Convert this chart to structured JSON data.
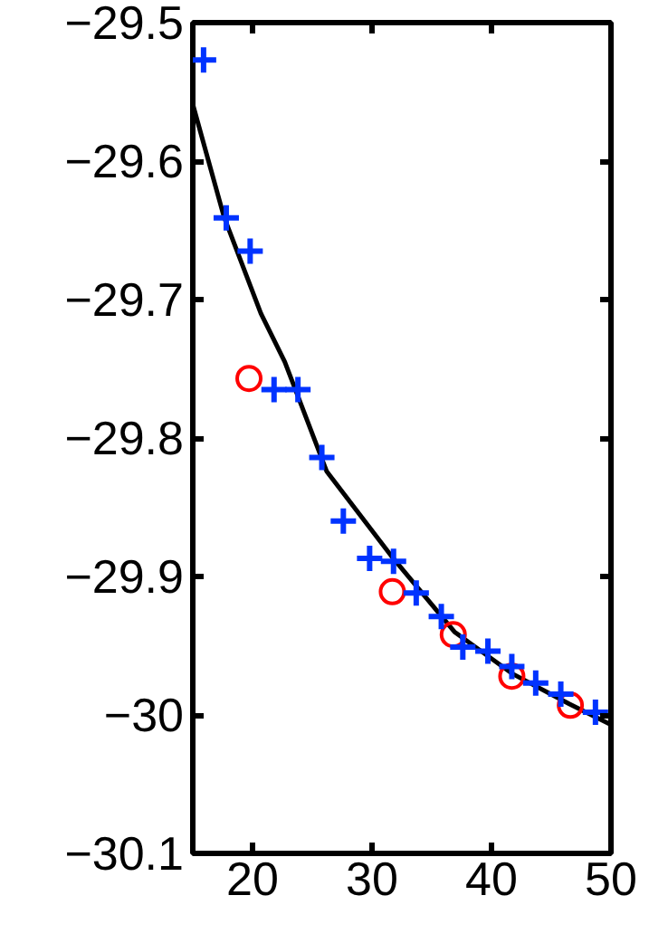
{
  "chart_data": {
    "type": "scatter",
    "xlim": [
      15,
      50
    ],
    "ylim": [
      -30.1,
      -29.5
    ],
    "xticks": [
      20,
      30,
      40,
      50
    ],
    "yticks": [
      {
        "value": -30.1,
        "label": "−30.1"
      },
      {
        "value": -30,
        "label": "−30"
      },
      {
        "value": -29.9,
        "label": "−29.9"
      },
      {
        "value": -29.8,
        "label": "−29.8"
      },
      {
        "value": -29.7,
        "label": "−29.7"
      },
      {
        "value": -29.6,
        "label": "−29.6"
      },
      {
        "value": -29.5,
        "label": "−29.5"
      }
    ],
    "grid": false,
    "series": [
      {
        "marker": "cross",
        "color": "#0033ff",
        "x": [
          15.9,
          17.8,
          19.8,
          21.8,
          23.8,
          25.8,
          27.6,
          29.8,
          31.8,
          33.7,
          35.8,
          37.6,
          39.7,
          41.7,
          43.7,
          45.8,
          48.7
        ],
        "values": [
          -29.527,
          -29.641,
          -29.665,
          -29.765,
          -29.765,
          -29.814,
          -29.86,
          -29.887,
          -29.889,
          -29.912,
          -29.929,
          -29.951,
          -29.954,
          -29.965,
          -29.977,
          -29.985,
          -29.998
        ]
      },
      {
        "marker": "circle",
        "color": "#ff0000",
        "x": [
          19.7,
          31.7,
          36.8,
          41.7,
          46.6
        ],
        "values": [
          -29.757,
          -29.911,
          -29.942,
          -29.972,
          -29.993
        ]
      },
      {
        "type": "line",
        "line_style": "solid",
        "color": "#000000",
        "x": [
          15,
          17.6,
          20.7,
          22.7,
          25.8,
          26.2,
          31.6,
          36.9,
          41.7,
          46.5,
          50
        ],
        "values": [
          -29.559,
          -29.64,
          -29.71,
          -29.745,
          -29.815,
          -29.824,
          -29.885,
          -29.94,
          -29.97,
          -29.992,
          -30.007
        ]
      }
    ]
  }
}
